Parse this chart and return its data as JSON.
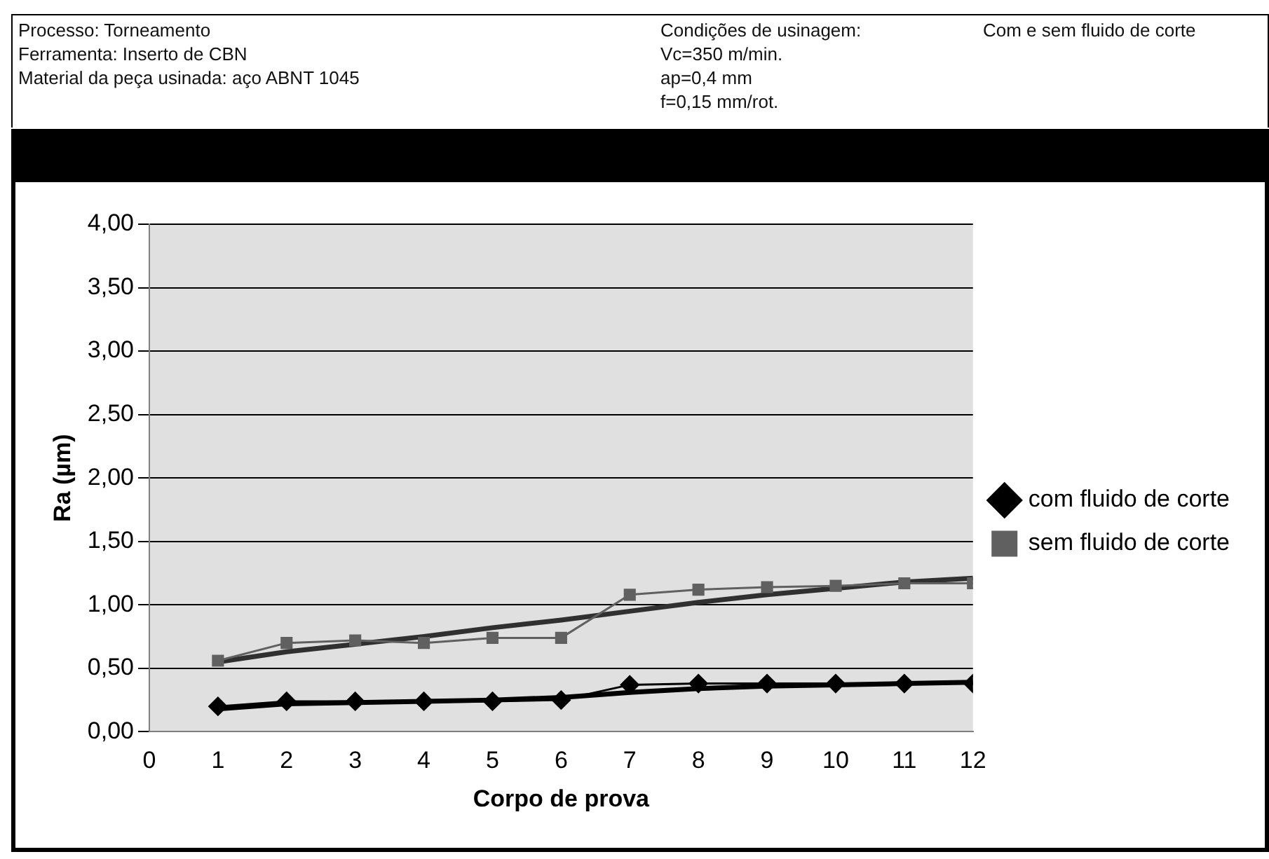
{
  "chart_data": {
    "type": "line",
    "annotations": [
      "Processo: Torneamento",
      "Ferramenta: Inserto de CBN",
      "Material da peça usinada: aço ABNT 1045",
      "Condições de usinagem:",
      "Vc=350 m/min.",
      "ap=0,4 mm",
      "f=0,15 mm/rot.",
      "Com e sem fluido de corte"
    ],
    "xlabel": "Corpo de prova",
    "ylabel": "Ra (µm)",
    "x": [
      1,
      2,
      3,
      4,
      5,
      6,
      7,
      8,
      9,
      10,
      11,
      12
    ],
    "xlim": [
      0,
      12
    ],
    "xticks": [
      0,
      1,
      2,
      3,
      4,
      5,
      6,
      7,
      8,
      9,
      10,
      11,
      12
    ],
    "ylim": [
      0,
      4
    ],
    "yticks": [
      {
        "value": 0,
        "label": "0,00"
      },
      {
        "value": 0.5,
        "label": "0,50"
      },
      {
        "value": 1,
        "label": "1,00"
      },
      {
        "value": 1.5,
        "label": "1,50"
      },
      {
        "value": 2,
        "label": "2,00"
      },
      {
        "value": 2.5,
        "label": "2,50"
      },
      {
        "value": 3,
        "label": "3,00"
      },
      {
        "value": 3.5,
        "label": "3,50"
      },
      {
        "value": 4,
        "label": "4,00"
      }
    ],
    "grid": "y",
    "legend": "right",
    "line_style": "solid",
    "series": [
      {
        "name": "com fluido de corte",
        "color": "#000000",
        "marker": "diamond",
        "values": [
          0.2,
          0.24,
          0.24,
          0.24,
          0.24,
          0.25,
          0.37,
          0.38,
          0.38,
          0.38,
          0.38,
          0.38
        ]
      },
      {
        "name": "sem fluido de corte",
        "color": "#606060",
        "marker": "square",
        "values": [
          0.56,
          0.7,
          0.72,
          0.7,
          0.74,
          0.74,
          1.08,
          1.12,
          1.14,
          1.15,
          1.17,
          1.17
        ]
      },
      {
        "type": "line",
        "color": "#000000",
        "marker": "none",
        "values": [
          0.18,
          0.22,
          0.23,
          0.24,
          0.25,
          0.27,
          0.31,
          0.34,
          0.36,
          0.37,
          0.38,
          0.39
        ]
      },
      {
        "type": "line",
        "color": "#303030",
        "marker": "none",
        "values": [
          0.55,
          0.63,
          0.69,
          0.75,
          0.82,
          0.88,
          0.95,
          1.02,
          1.08,
          1.13,
          1.18,
          1.21
        ]
      }
    ]
  }
}
